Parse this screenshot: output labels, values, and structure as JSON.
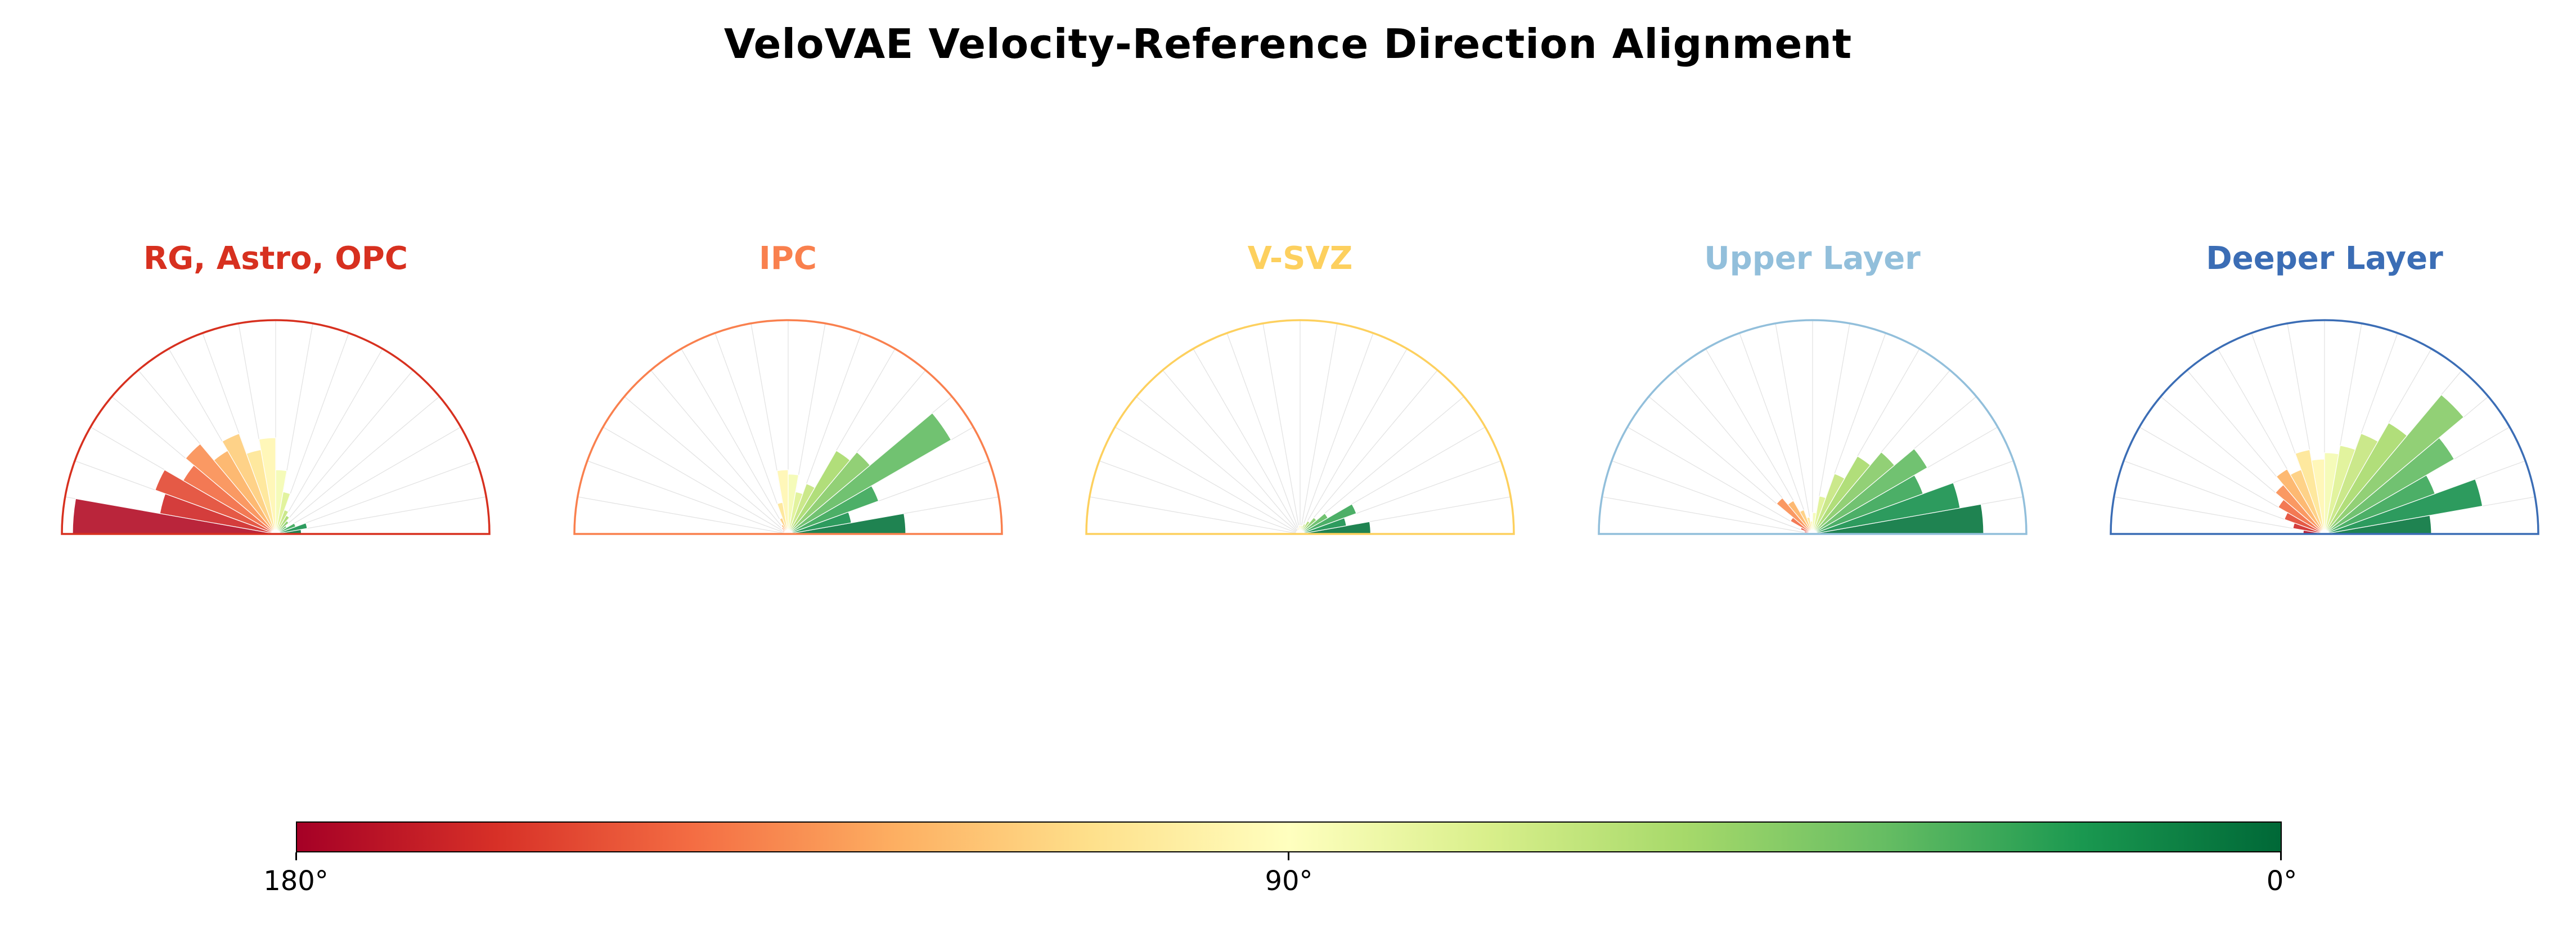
{
  "title": "VeloVAE Velocity-Reference Direction Alignment",
  "colorbar": {
    "ticks": [
      "180°",
      "90°",
      "0°"
    ]
  },
  "chart_data": {
    "type": "polar_histogram",
    "title": "VeloVAE Velocity-Reference Direction Alignment",
    "colormap_name": "RdYlGn",
    "colormap_colors": [
      "#a50026",
      "#d73027",
      "#f46d43",
      "#fdae61",
      "#fee08b",
      "#ffffbf",
      "#d9ef8b",
      "#a6d96a",
      "#66bd63",
      "#1a9850",
      "#006837"
    ],
    "angle_range_deg": [
      0,
      180
    ],
    "bin_width_deg": 10,
    "color_encoding": "bar color mapped to bin angle: 180deg=red, 90deg=pale yellow, 0deg=green",
    "radial_unit": "fraction of outer radius, bins ordered from 0-10deg (right) up to 170-180deg (left)",
    "subplots": [
      {
        "title": "RG, Astro, OPC",
        "color": "#d7301f",
        "bar_fractions": [
          0.12,
          0.15,
          0.1,
          0.06,
          0.08,
          0.1,
          0.12,
          0.2,
          0.3,
          0.45,
          0.4,
          0.5,
          0.45,
          0.55,
          0.5,
          0.6,
          0.55,
          0.95
        ]
      },
      {
        "title": "IPC",
        "color": "#f9804e",
        "bar_fractions": [
          0.55,
          0.3,
          0.45,
          0.88,
          0.5,
          0.45,
          0.25,
          0.2,
          0.28,
          0.3,
          0.15,
          0.08,
          0.05,
          0.04,
          0.03,
          0.03,
          0.02,
          0.02
        ]
      },
      {
        "title": "V-SVZ",
        "color": "#fdd05e",
        "bar_fractions": [
          0.33,
          0.22,
          0.28,
          0.15,
          0.1,
          0.07,
          0.05,
          0.04,
          0.04,
          0.04,
          0.03,
          0.03,
          0.02,
          0.02,
          0.02,
          0.02,
          0.01,
          0.01
        ]
      },
      {
        "title": "Upper Layer",
        "color": "#92bfdb",
        "bar_fractions": [
          0.8,
          0.7,
          0.55,
          0.62,
          0.5,
          0.42,
          0.3,
          0.18,
          0.1,
          0.06,
          0.08,
          0.12,
          0.18,
          0.22,
          0.12,
          0.06,
          0.04,
          0.03
        ]
      },
      {
        "title": "Deeper Layer",
        "color": "#3b6db5",
        "bar_fractions": [
          0.5,
          0.75,
          0.55,
          0.7,
          0.85,
          0.6,
          0.5,
          0.42,
          0.38,
          0.35,
          0.4,
          0.32,
          0.35,
          0.3,
          0.25,
          0.2,
          0.15,
          0.1
        ]
      }
    ]
  }
}
